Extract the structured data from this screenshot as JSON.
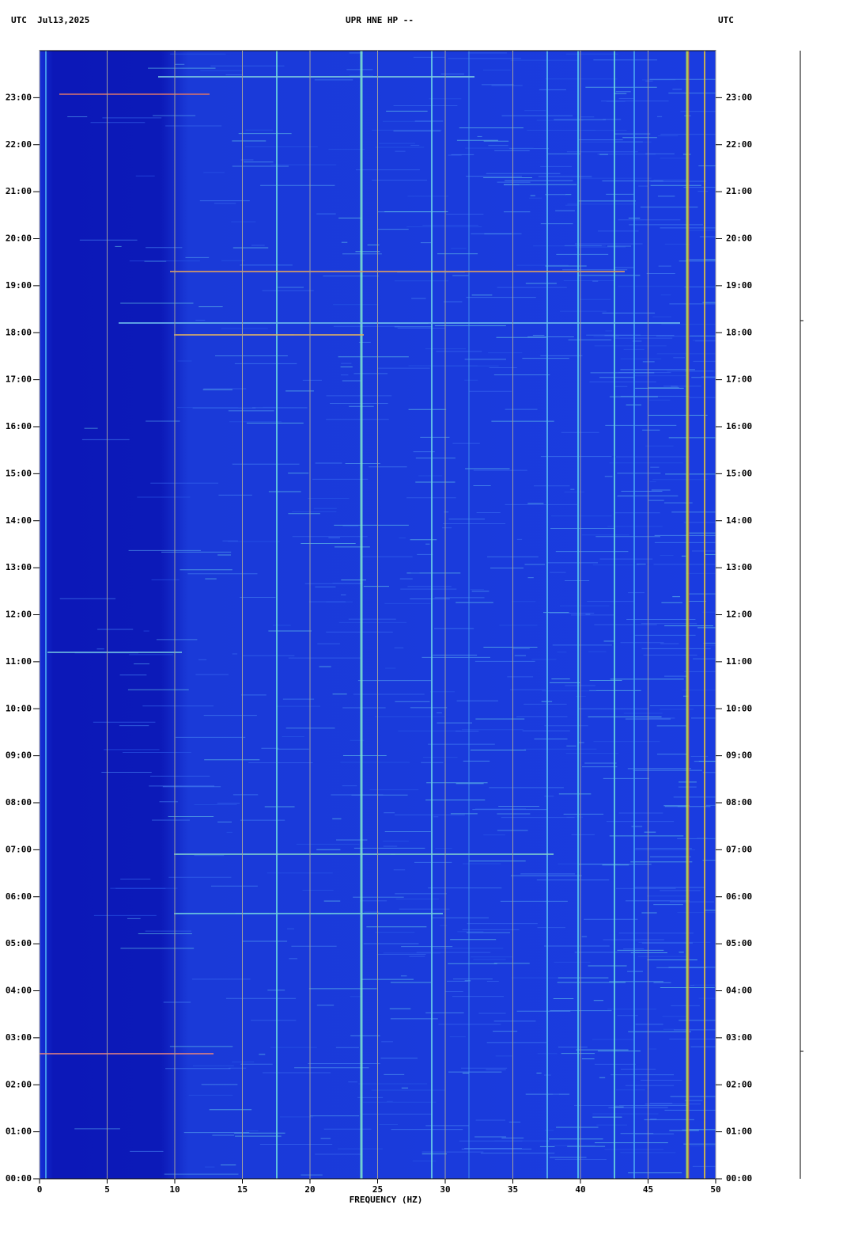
{
  "chart_data": {
    "type": "spectrogram",
    "title": "UPR HNE HP --",
    "left_header": "UTC  Jul13,2025",
    "right_header": "UTC",
    "xlabel": "FREQUENCY (HZ)",
    "xlim": [
      0,
      50
    ],
    "xticks": [
      0,
      5,
      10,
      15,
      20,
      25,
      30,
      35,
      40,
      45,
      50
    ],
    "ylim": [
      0,
      24
    ],
    "yticks": [
      {
        "value": 0,
        "label": "00:00"
      },
      {
        "value": 1,
        "label": "01:00"
      },
      {
        "value": 2,
        "label": "02:00"
      },
      {
        "value": 3,
        "label": "03:00"
      },
      {
        "value": 4,
        "label": "04:00"
      },
      {
        "value": 5,
        "label": "05:00"
      },
      {
        "value": 6,
        "label": "06:00"
      },
      {
        "value": 7,
        "label": "07:00"
      },
      {
        "value": 8,
        "label": "08:00"
      },
      {
        "value": 9,
        "label": "09:00"
      },
      {
        "value": 10,
        "label": "10:00"
      },
      {
        "value": 11,
        "label": "11:00"
      },
      {
        "value": 12,
        "label": "12:00"
      },
      {
        "value": 13,
        "label": "13:00"
      },
      {
        "value": 14,
        "label": "14:00"
      },
      {
        "value": 15,
        "label": "15:00"
      },
      {
        "value": 16,
        "label": "16:00"
      },
      {
        "value": 17,
        "label": "17:00"
      },
      {
        "value": 18,
        "label": "18:00"
      },
      {
        "value": 19,
        "label": "19:00"
      },
      {
        "value": 20,
        "label": "20:00"
      },
      {
        "value": 21,
        "label": "21:00"
      },
      {
        "value": 22,
        "label": "22:00"
      },
      {
        "value": 23,
        "label": "23:00"
      }
    ],
    "grid": true,
    "grid_color": "#a0a0a0"
  }
}
